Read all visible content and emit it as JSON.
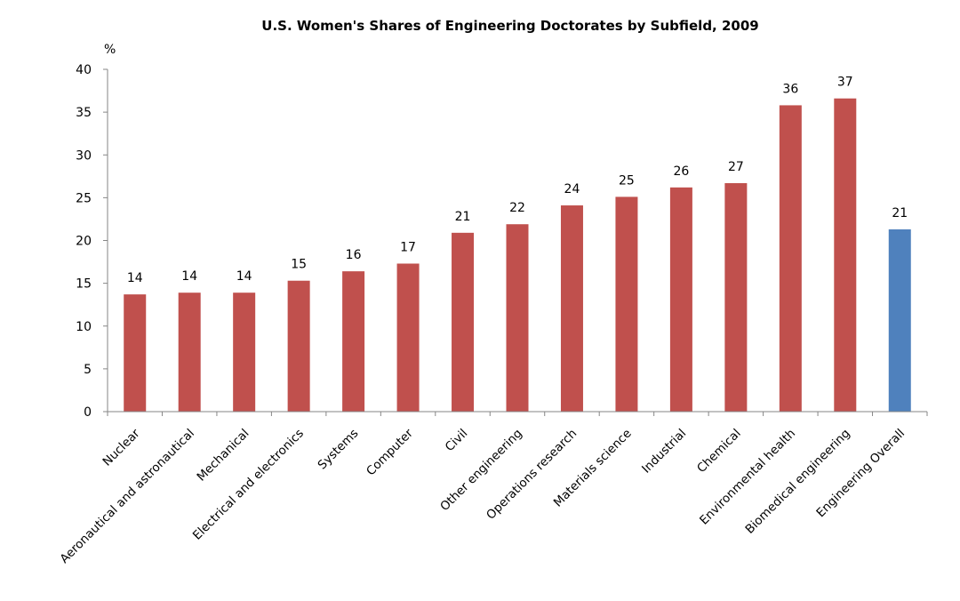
{
  "chart_data": {
    "type": "bar",
    "title": "U.S. Women's Shares of Engineering Doctorates by Subfield, 2009",
    "xlabel": "",
    "ylabel": "%",
    "ylim": [
      0,
      40
    ],
    "yticks": [
      0,
      5,
      10,
      15,
      20,
      25,
      30,
      35,
      40
    ],
    "grid": false,
    "legend": null,
    "categories": [
      "Nuclear",
      "Aeronautical and astronautical",
      "Mechanical",
      "Electrical and electronics",
      "Systems",
      "Computer",
      "Civil",
      "Other engineering",
      "Operations research",
      "Materials science",
      "Industrial",
      "Chemical",
      "Environmental health",
      "Biomedical engineering",
      "Engineering Overall"
    ],
    "values": [
      13.7,
      13.9,
      13.9,
      15.3,
      16.4,
      17.3,
      20.9,
      21.9,
      24.1,
      25.1,
      26.2,
      26.7,
      35.8,
      36.6,
      21.3
    ],
    "data_labels": [
      "14",
      "14",
      "14",
      "15",
      "16",
      "17",
      "21",
      "22",
      "24",
      "25",
      "26",
      "27",
      "36",
      "37",
      "21"
    ],
    "colors": {
      "subfield": "#c0504d",
      "overall": "#4f81bd",
      "axis": "#868686"
    },
    "highlight_index": 14
  }
}
